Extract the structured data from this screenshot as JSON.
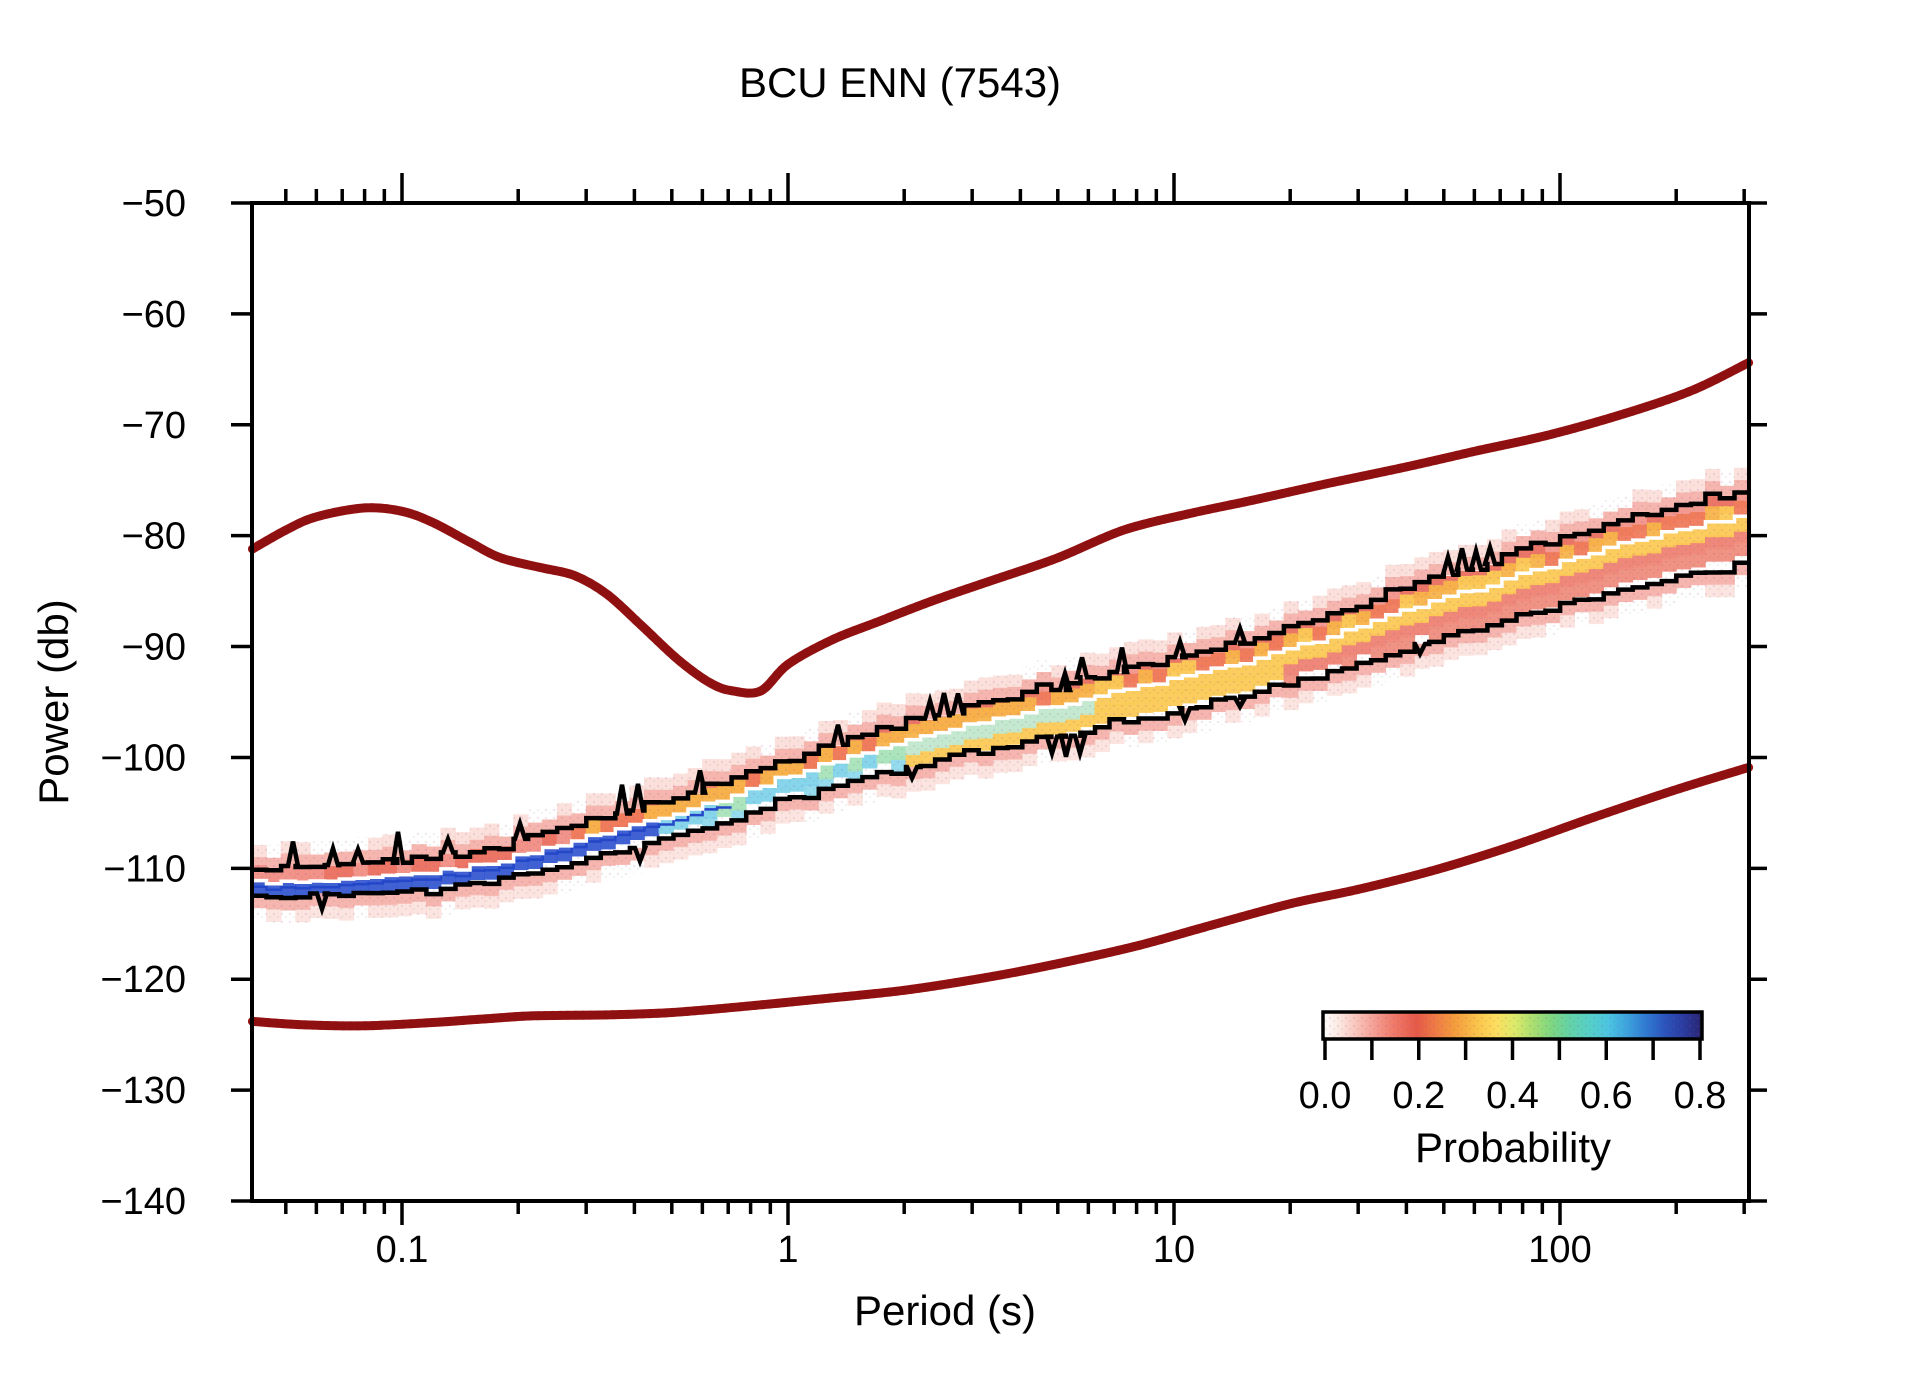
{
  "title": "BCU ENN (7543)",
  "axes": {
    "x": {
      "label": "Period (s)",
      "scale": "log",
      "min_s": 0.0409,
      "max_s": 308.8,
      "major_ticks": [
        0.1,
        1,
        10,
        100
      ],
      "tick_labels": [
        "0.1",
        "1",
        "10",
        "100"
      ]
    },
    "y": {
      "label": "Power (db)",
      "min": -140,
      "max": -50,
      "tick_step": 10,
      "tick_values": [
        -50,
        -60,
        -70,
        -80,
        -90,
        -100,
        -110,
        -120,
        -130,
        -140
      ],
      "tick_labels": [
        "−50",
        "−60",
        "−70",
        "−80",
        "−90",
        "−100",
        "−110",
        "−120",
        "−130",
        "−140"
      ]
    }
  },
  "colorbar": {
    "label": "Probability",
    "min": 0.0,
    "max": 0.8,
    "tick_values": [
      0.0,
      0.2,
      0.4,
      0.6,
      0.8
    ],
    "tick_labels": [
      "0.0",
      "0.2",
      "0.4",
      "0.6",
      "0.8"
    ],
    "minor_tick_values": [
      0.1,
      0.3,
      0.5,
      0.7
    ],
    "gradient_stops": [
      [
        0.0,
        "#ffffff"
      ],
      [
        0.04,
        "#fce3dc"
      ],
      [
        0.1,
        "#f6a89e"
      ],
      [
        0.15,
        "#f07b6b"
      ],
      [
        0.2,
        "#e65948"
      ],
      [
        0.24,
        "#ee7a45"
      ],
      [
        0.28,
        "#f59b3d"
      ],
      [
        0.33,
        "#fbc34a"
      ],
      [
        0.37,
        "#fede5f"
      ],
      [
        0.41,
        "#dcea6a"
      ],
      [
        0.45,
        "#a8de70"
      ],
      [
        0.49,
        "#7cd683"
      ],
      [
        0.53,
        "#62d2a8"
      ],
      [
        0.57,
        "#55cfc8"
      ],
      [
        0.61,
        "#4cc4e2"
      ],
      [
        0.65,
        "#3da3de"
      ],
      [
        0.69,
        "#2f7ad2"
      ],
      [
        0.73,
        "#2b55bd"
      ],
      [
        0.77,
        "#2b3ba0"
      ],
      [
        0.8,
        "#2a2a7e"
      ],
      [
        0.81,
        "#23205f"
      ]
    ]
  },
  "chart_data": {
    "type": "heatmap",
    "title": "BCU ENN (7543)",
    "xlabel": "Period (s)",
    "ylabel": "Power (db)",
    "xlim_s": [
      0.0409,
      308.8
    ],
    "ylim_db": [
      -140,
      -50
    ],
    "legend": "probability colorbar 0.0 - 0.8, PQLX-style colormap",
    "series": [
      {
        "name": "high_noise_model",
        "style": "thick dark red curve",
        "color": "#9e1313",
        "points": [
          [
            0.041,
            -81.2
          ],
          [
            0.05,
            -79.5
          ],
          [
            0.06,
            -78.3
          ],
          [
            0.08,
            -77.5
          ],
          [
            0.1,
            -77.8
          ],
          [
            0.12,
            -78.8
          ],
          [
            0.15,
            -80.6
          ],
          [
            0.18,
            -82.0
          ],
          [
            0.23,
            -82.9
          ],
          [
            0.28,
            -83.6
          ],
          [
            0.34,
            -85.3
          ],
          [
            0.42,
            -88.2
          ],
          [
            0.52,
            -91.2
          ],
          [
            0.63,
            -93.3
          ],
          [
            0.72,
            -94.0
          ],
          [
            0.85,
            -94.0
          ],
          [
            1.0,
            -91.6
          ],
          [
            1.3,
            -89.4
          ],
          [
            1.7,
            -87.8
          ],
          [
            2.4,
            -85.8
          ],
          [
            3.4,
            -84.0
          ],
          [
            5.0,
            -82.0
          ],
          [
            7.4,
            -79.5
          ],
          [
            11,
            -78.0
          ],
          [
            16,
            -76.8
          ],
          [
            25,
            -75.3
          ],
          [
            40,
            -73.8
          ],
          [
            60,
            -72.4
          ],
          [
            94,
            -70.9
          ],
          [
            150,
            -68.9
          ],
          [
            220,
            -66.9
          ],
          [
            308,
            -64.4
          ]
        ]
      },
      {
        "name": "low_noise_model",
        "style": "thick dark red curve",
        "color": "#9e1313",
        "points": [
          [
            0.041,
            -123.8
          ],
          [
            0.055,
            -124.1
          ],
          [
            0.08,
            -124.2
          ],
          [
            0.12,
            -123.9
          ],
          [
            0.16,
            -123.6
          ],
          [
            0.22,
            -123.3
          ],
          [
            0.35,
            -123.2
          ],
          [
            0.5,
            -123.0
          ],
          [
            0.8,
            -122.4
          ],
          [
            1.2,
            -121.8
          ],
          [
            2.0,
            -121.0
          ],
          [
            3.2,
            -119.9
          ],
          [
            5.0,
            -118.6
          ],
          [
            8.0,
            -117.0
          ],
          [
            12,
            -115.3
          ],
          [
            20,
            -113.2
          ],
          [
            30,
            -111.9
          ],
          [
            48,
            -110.1
          ],
          [
            75,
            -108.0
          ],
          [
            120,
            -105.5
          ],
          [
            200,
            -102.9
          ],
          [
            308,
            -100.9
          ]
        ]
      },
      {
        "name": "pdf_mode_line",
        "style": "white stepped line through probability cloud",
        "color": "#ffffff",
        "points": [
          [
            0.041,
            -111.2
          ],
          [
            0.055,
            -111.3
          ],
          [
            0.075,
            -111.1
          ],
          [
            0.1,
            -110.7
          ],
          [
            0.14,
            -110.1
          ],
          [
            0.19,
            -109.2
          ],
          [
            0.26,
            -107.9
          ],
          [
            0.36,
            -106.6
          ],
          [
            0.5,
            -105.2
          ],
          [
            0.7,
            -103.7
          ],
          [
            1.0,
            -101.8
          ],
          [
            1.45,
            -100.0
          ],
          [
            2.1,
            -98.5
          ],
          [
            3.0,
            -97.0
          ],
          [
            4.8,
            -95.5
          ],
          [
            7.0,
            -94.2
          ],
          [
            10,
            -93.0
          ],
          [
            14.6,
            -91.7
          ],
          [
            21,
            -90.1
          ],
          [
            30,
            -88.3
          ],
          [
            44,
            -86.4
          ],
          [
            65,
            -84.6
          ],
          [
            94,
            -82.8
          ],
          [
            140,
            -81.0
          ],
          [
            200,
            -79.6
          ],
          [
            308,
            -78.2
          ]
        ]
      }
    ],
    "pdf_band": {
      "description": "stepped probability-density cloud around mode line, black envelopes",
      "bins_per_decade": 26.6,
      "top_envelope_offset_db": {
        "at_short_period": 1.2,
        "at_long_period": 2.3
      },
      "bottom_envelope_offset_db": {
        "at_short_period": 1.3,
        "at_long_period": 4.4
      },
      "fringe_extra_db": 2.2,
      "top_envelope_spikes": [
        [
          293,
          2.2
        ],
        [
          333,
          1.5
        ],
        [
          358,
          1.2
        ],
        [
          398,
          2.8
        ],
        [
          448,
          1.2
        ],
        [
          520,
          1.4
        ],
        [
          622,
          2.6
        ],
        [
          638,
          2.4
        ],
        [
          700,
          2.0
        ],
        [
          838,
          1.8
        ],
        [
          930,
          1.6
        ],
        [
          944,
          2.0
        ],
        [
          958,
          1.8
        ],
        [
          1065,
          1.5
        ],
        [
          1082,
          1.8
        ],
        [
          1122,
          2.2
        ],
        [
          1180,
          1.4
        ],
        [
          1240,
          1.3
        ],
        [
          1448,
          1.6
        ],
        [
          1462,
          1.9
        ],
        [
          1476,
          1.7
        ],
        [
          1490,
          1.5
        ]
      ],
      "bottom_envelope_spikes": [
        [
          322,
          1.4
        ],
        [
          640,
          1.2
        ],
        [
          912,
          1.0
        ],
        [
          1052,
          1.5
        ],
        [
          1066,
          1.9
        ],
        [
          1080,
          1.6
        ],
        [
          1185,
          1.1
        ],
        [
          1240,
          0.8
        ],
        [
          1420,
          0.9
        ]
      ],
      "palette": {
        "fringe_light": "#fad5cf",
        "fringe": "#f5aea6",
        "red": "#ea6f5f",
        "salmon": "#f2948a",
        "gold": "#f9b34a",
        "yellow": "#fcca55",
        "pale_green": "#c2e8cd",
        "green_fleck": "#a7e3b9",
        "cyan": "#7fd3ea",
        "cyan2": "#8ed9ec",
        "blue_line": "#2446c8",
        "blue_cell": "#3558d2",
        "envelope": "#000000",
        "mode": "#ffffff"
      }
    }
  }
}
